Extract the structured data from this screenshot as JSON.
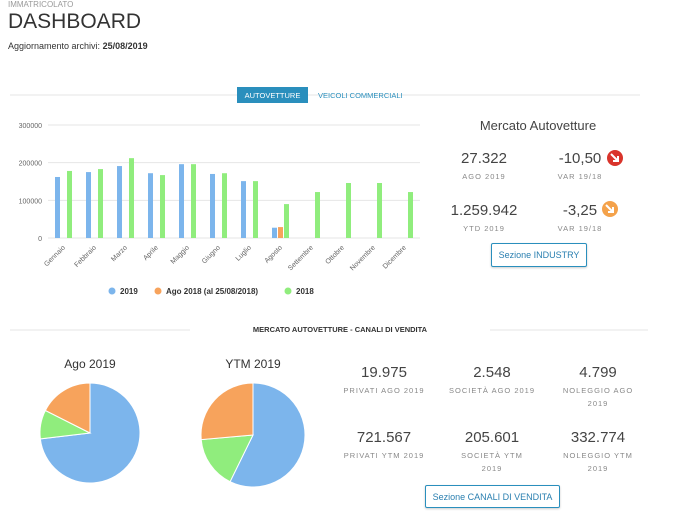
{
  "header": {
    "section": "IMMATRICOLATO",
    "title": "DASHBOARD",
    "update_label": "Aggiornamento archivi:",
    "update_date": "25/08/2019"
  },
  "tabs": [
    "AUTOVETTURE",
    "VEICOLI COMMERCIALI"
  ],
  "market": {
    "title": "Mercato Autovetture",
    "kpis": [
      {
        "value": "27.322",
        "label": "AGO 2019"
      },
      {
        "value": "-10,50",
        "label": "VAR 19/18"
      },
      {
        "value": "1.259.942",
        "label": "YTD 2019"
      },
      {
        "value": "-3,25",
        "label": "VAR 19/18"
      }
    ],
    "button": "Sezione INDUSTRY"
  },
  "channels": {
    "title": "MERCATO AUTOVETTURE - CANALI DI VENDITA",
    "kpis": [
      {
        "value": "19.975",
        "label": "PRIVATI AGO 2019"
      },
      {
        "value": "2.548",
        "label": "SOCIETÀ AGO 2019"
      },
      {
        "value": "4.799",
        "label": "NOLEGGIO AGO 2019"
      },
      {
        "value": "721.567",
        "label": "PRIVATI YTM 2019"
      },
      {
        "value": "205.601",
        "label": "SOCIETÀ YTM 2019"
      },
      {
        "value": "332.774",
        "label": "NOLEGGIO YTM 2019"
      }
    ],
    "button": "Sezione CANALI DI VENDITA"
  },
  "chart_data": [
    {
      "type": "bar",
      "categories": [
        "Gennaio",
        "Febbraio",
        "Marzo",
        "Aprile",
        "Maggio",
        "Giugno",
        "Luglio",
        "Agosto",
        "Settembre",
        "Ottobre",
        "Novembre",
        "Dicembre"
      ],
      "series": [
        {
          "name": "2019",
          "color": "#7cb5ec",
          "values": [
            162000,
            175000,
            191000,
            172000,
            196000,
            170000,
            151000,
            27322,
            null,
            null,
            null,
            null
          ]
        },
        {
          "name": "Ago 2018 (al 25/08/2018)",
          "color": "#f7a35c",
          "values": [
            null,
            null,
            null,
            null,
            null,
            null,
            null,
            29000,
            null,
            null,
            null,
            null
          ]
        },
        {
          "name": "2018",
          "color": "#90ed7d",
          "values": [
            178000,
            183000,
            212000,
            167000,
            196000,
            172000,
            151000,
            90000,
            122000,
            146000,
            146000,
            122000
          ]
        }
      ],
      "ylim": [
        0,
        300000
      ],
      "yticks": [
        0,
        100000,
        200000,
        300000
      ],
      "grid": true
    },
    {
      "type": "pie",
      "title": "Ago 2019",
      "values": [
        19975,
        2548,
        4799
      ],
      "colors": [
        "#7cb5ec",
        "#90ed7d",
        "#f7a35c"
      ]
    },
    {
      "type": "pie",
      "title": "YTM 2019",
      "values": [
        721567,
        205601,
        332774
      ],
      "colors": [
        "#7cb5ec",
        "#90ed7d",
        "#f7a35c"
      ]
    }
  ]
}
